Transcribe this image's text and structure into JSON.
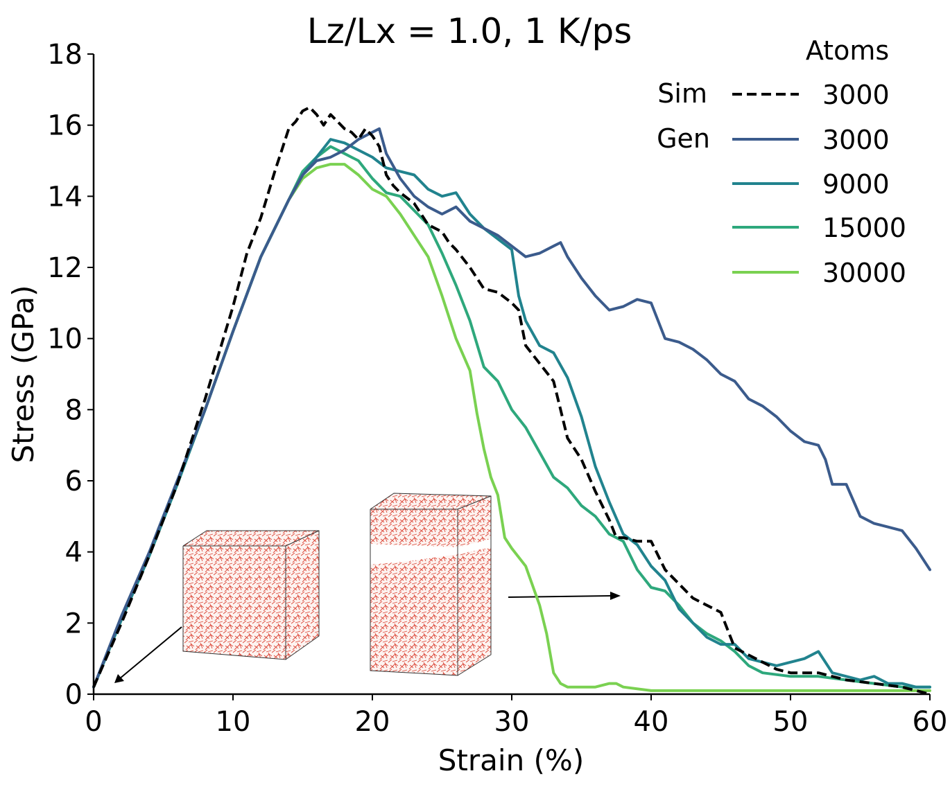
{
  "chart_data": {
    "type": "line",
    "title": "Lz/Lx = 1.0, 1 K/ps",
    "xlabel": "Strain (%)",
    "ylabel": "Stress (GPa)",
    "xlim": [
      0,
      60
    ],
    "ylim": [
      0,
      18
    ],
    "xticks": [
      "0",
      "10",
      "20",
      "30",
      "40",
      "50",
      "60"
    ],
    "yticks": [
      "0",
      "2",
      "4",
      "6",
      "8",
      "10",
      "12",
      "14",
      "16",
      "18"
    ],
    "legend": {
      "title": "Atoms",
      "group_labels": [
        "Sim",
        "Gen"
      ],
      "placement": "top-right"
    },
    "series": [
      {
        "name": "3000",
        "group": "Sim",
        "color": "#000000",
        "dash": "dashed",
        "x": [
          0,
          2,
          4,
          6,
          8,
          9,
          10,
          11,
          12,
          13,
          13.5,
          14,
          14.5,
          15,
          15.5,
          16,
          16.5,
          17,
          17.5,
          18,
          18.5,
          19,
          19.5,
          20,
          20.5,
          21,
          21.5,
          22,
          23,
          24,
          25,
          25.5,
          26,
          27,
          27.5,
          28,
          29,
          30,
          30.5,
          31,
          32,
          33,
          33.5,
          34,
          35,
          36,
          37,
          37.5,
          38,
          39,
          40,
          41,
          42,
          43,
          44,
          45,
          46,
          47,
          48,
          49,
          50,
          52,
          54,
          56,
          58,
          60
        ],
        "y": [
          0.2,
          2.0,
          3.9,
          5.9,
          8.3,
          9.6,
          10.9,
          12.4,
          13.4,
          14.7,
          15.3,
          15.9,
          16.1,
          16.4,
          16.5,
          16.3,
          16.0,
          16.3,
          16.1,
          15.9,
          15.8,
          15.6,
          15.9,
          15.7,
          15.4,
          14.6,
          14.3,
          14.1,
          13.8,
          13.2,
          13.0,
          12.7,
          12.5,
          12.0,
          11.7,
          11.4,
          11.3,
          11.0,
          10.8,
          9.8,
          9.3,
          8.8,
          8.0,
          7.2,
          6.6,
          5.7,
          4.9,
          4.4,
          4.4,
          4.3,
          4.3,
          3.5,
          3.1,
          2.7,
          2.5,
          2.3,
          1.3,
          1.1,
          0.9,
          0.7,
          0.6,
          0.6,
          0.4,
          0.3,
          0.2,
          0.0
        ]
      },
      {
        "name": "3000",
        "group": "Gen",
        "color": "#3b5b8c",
        "dash": "solid",
        "x": [
          0,
          2,
          4,
          6,
          8,
          10,
          12,
          14,
          15,
          16,
          17,
          18,
          19,
          20,
          20.5,
          21,
          22,
          23,
          24,
          25,
          26,
          27,
          28,
          29,
          30,
          31,
          32,
          33,
          33.5,
          34,
          35,
          36,
          37,
          38,
          39,
          40,
          41,
          42,
          43,
          44,
          45,
          46,
          47,
          48,
          49,
          50,
          51,
          52,
          52.5,
          53,
          54,
          55,
          56,
          57,
          58,
          59,
          60
        ],
        "y": [
          0.2,
          2.2,
          4.0,
          6.0,
          8.0,
          10.2,
          12.3,
          13.9,
          14.6,
          15.0,
          15.1,
          15.3,
          15.6,
          15.8,
          15.9,
          15.2,
          14.5,
          14.0,
          13.7,
          13.5,
          13.7,
          13.3,
          13.1,
          12.9,
          12.6,
          12.3,
          12.4,
          12.6,
          12.7,
          12.3,
          11.7,
          11.2,
          10.8,
          10.9,
          11.1,
          11.0,
          10.0,
          9.9,
          9.7,
          9.4,
          9.0,
          8.8,
          8.3,
          8.1,
          7.8,
          7.4,
          7.1,
          7.0,
          6.6,
          5.9,
          5.9,
          5.0,
          4.8,
          4.7,
          4.6,
          4.1,
          3.5
        ]
      },
      {
        "name": "9000",
        "group": "Gen",
        "color": "#21838e",
        "dash": "solid",
        "x": [
          0,
          2,
          4,
          6,
          8,
          10,
          12,
          14,
          15,
          16,
          17,
          18,
          19,
          20,
          21,
          22,
          23,
          24,
          25,
          26,
          27,
          28,
          29,
          30,
          30.5,
          31,
          32,
          33,
          34,
          35,
          36,
          37,
          38,
          39,
          40,
          41,
          42,
          43,
          44,
          45,
          46,
          47,
          48,
          49,
          50,
          51,
          52,
          53,
          54,
          55,
          56,
          57,
          58,
          59,
          60
        ],
        "y": [
          0.2,
          2.1,
          3.9,
          5.9,
          8.0,
          10.2,
          12.3,
          13.9,
          14.6,
          15.1,
          15.6,
          15.5,
          15.3,
          15.1,
          14.8,
          14.7,
          14.6,
          14.2,
          14.0,
          14.1,
          13.5,
          13.1,
          12.8,
          12.5,
          11.2,
          10.5,
          9.8,
          9.6,
          8.9,
          7.8,
          6.4,
          5.4,
          4.5,
          4.2,
          3.6,
          3.2,
          2.4,
          2.0,
          1.6,
          1.4,
          1.4,
          1.0,
          0.9,
          0.8,
          0.9,
          1.0,
          1.2,
          0.6,
          0.5,
          0.4,
          0.5,
          0.3,
          0.3,
          0.2,
          0.2
        ]
      },
      {
        "name": "15000",
        "group": "Gen",
        "color": "#2ea87c",
        "dash": "solid",
        "x": [
          0,
          2,
          4,
          6,
          8,
          10,
          12,
          14,
          15,
          16,
          17,
          18,
          19,
          20,
          21,
          22,
          23,
          24,
          25,
          26,
          27,
          28,
          29,
          30,
          31,
          32,
          33,
          34,
          35,
          36,
          37,
          38,
          39,
          40,
          41,
          42,
          43,
          44,
          45,
          46,
          47,
          48,
          50,
          52,
          54,
          56,
          58,
          60
        ],
        "y": [
          0.2,
          2.1,
          3.9,
          5.9,
          8.0,
          10.2,
          12.3,
          13.9,
          14.7,
          15.1,
          15.4,
          15.2,
          15.0,
          14.5,
          14.1,
          14.0,
          13.6,
          13.2,
          12.4,
          11.5,
          10.5,
          9.2,
          8.8,
          8.0,
          7.5,
          6.8,
          6.1,
          5.8,
          5.3,
          5.0,
          4.5,
          4.3,
          3.5,
          3.0,
          2.9,
          2.5,
          2.0,
          1.7,
          1.5,
          1.2,
          0.8,
          0.6,
          0.5,
          0.5,
          0.4,
          0.3,
          0.2,
          0.2
        ]
      },
      {
        "name": "30000",
        "group": "Gen",
        "color": "#7ad151",
        "dash": "solid",
        "x": [
          0,
          2,
          4,
          6,
          8,
          10,
          12,
          14,
          15,
          16,
          17,
          18,
          19,
          20,
          21,
          22,
          23,
          24,
          25,
          26,
          27,
          27.5,
          28,
          28.5,
          29,
          29.5,
          30,
          31,
          32,
          32.5,
          33,
          33.5,
          34,
          35,
          36,
          37,
          37.5,
          38,
          40,
          42,
          44,
          46,
          48,
          50,
          52,
          54,
          56,
          58,
          60
        ],
        "y": [
          0.2,
          2.1,
          3.9,
          5.9,
          8.0,
          10.2,
          12.3,
          13.9,
          14.5,
          14.8,
          14.9,
          14.9,
          14.6,
          14.2,
          14.0,
          13.5,
          12.9,
          12.3,
          11.2,
          10.0,
          9.1,
          7.9,
          6.9,
          6.1,
          5.6,
          4.4,
          4.1,
          3.6,
          2.5,
          1.7,
          0.6,
          0.3,
          0.2,
          0.2,
          0.2,
          0.3,
          0.3,
          0.2,
          0.1,
          0.1,
          0.1,
          0.1,
          0.1,
          0.1,
          0.1,
          0.1,
          0.1,
          0.1,
          0.1
        ]
      }
    ]
  }
}
